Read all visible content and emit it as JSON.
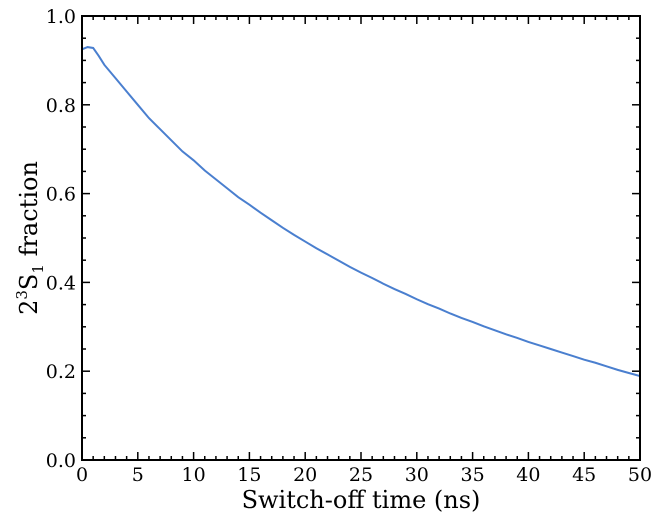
{
  "chart_data": {
    "type": "line",
    "title": "",
    "xlabel": "Switch-off time (ns)",
    "ylabel": {
      "prefix": "2",
      "superscript": "3",
      "base": "S",
      "subscript": "1",
      "suffix": " fraction"
    },
    "xlim": [
      0,
      50
    ],
    "ylim": [
      0.0,
      1.0
    ],
    "xticks": [
      0,
      5,
      10,
      15,
      20,
      25,
      30,
      35,
      40,
      45,
      50
    ],
    "xtick_labels": [
      "0",
      "5",
      "10",
      "15",
      "20",
      "25",
      "30",
      "35",
      "40",
      "45",
      "50"
    ],
    "yticks": [
      0.0,
      0.2,
      0.4,
      0.6,
      0.8,
      1.0
    ],
    "ytick_labels": [
      "0.0",
      "0.2",
      "0.4",
      "0.6",
      "0.8",
      "1.0"
    ],
    "grid": false,
    "legend": "none",
    "series": [
      {
        "color": "#4a7fcf",
        "x": [
          0,
          0.5,
          1,
          1.5,
          2,
          3,
          4,
          5,
          6,
          7,
          8,
          9,
          10,
          11,
          12,
          13,
          14,
          15,
          16,
          17,
          18,
          19,
          20,
          21,
          22,
          23,
          24,
          25,
          26,
          27,
          28,
          29,
          30,
          31,
          32,
          33,
          34,
          35,
          36,
          37,
          38,
          39,
          40,
          41,
          42,
          43,
          44,
          45,
          46,
          47,
          48,
          49,
          50
        ],
        "y": [
          0.925,
          0.93,
          0.928,
          0.91,
          0.89,
          0.86,
          0.83,
          0.8,
          0.77,
          0.745,
          0.72,
          0.695,
          0.675,
          0.652,
          0.632,
          0.612,
          0.592,
          0.575,
          0.557,
          0.54,
          0.523,
          0.507,
          0.492,
          0.477,
          0.463,
          0.449,
          0.435,
          0.422,
          0.41,
          0.397,
          0.385,
          0.374,
          0.362,
          0.351,
          0.341,
          0.33,
          0.32,
          0.311,
          0.301,
          0.292,
          0.283,
          0.275,
          0.266,
          0.258,
          0.25,
          0.242,
          0.234,
          0.226,
          0.219,
          0.211,
          0.203,
          0.196,
          0.189
        ]
      }
    ]
  }
}
